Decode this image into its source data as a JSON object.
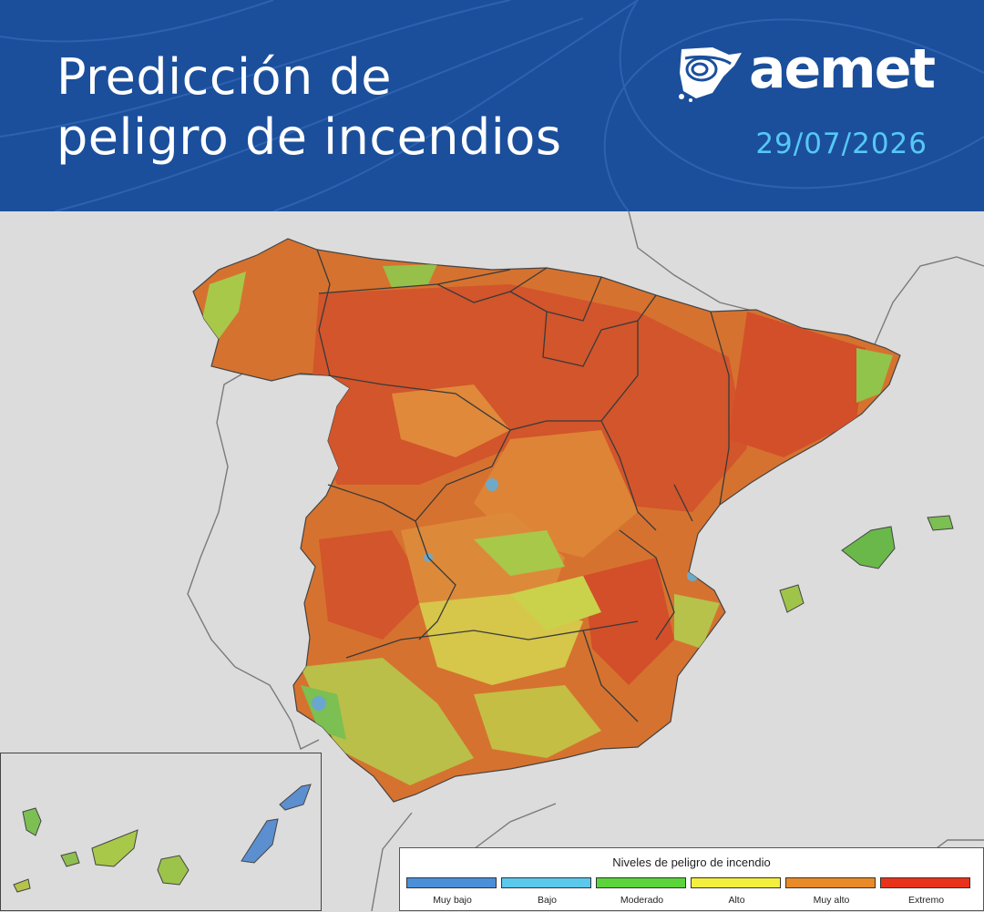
{
  "header": {
    "title_lines": [
      "Predicción de",
      "peligro de incendios"
    ],
    "brand": "aemet",
    "date": "29/07/2026",
    "background_color": "#1b4f9c",
    "date_color": "#56c8f5"
  },
  "legend": {
    "title": "Niveles de peligro de incendio",
    "items": [
      {
        "label": "Muy bajo",
        "color": "#4a8fd8"
      },
      {
        "label": "Bajo",
        "color": "#5cc8ec"
      },
      {
        "label": "Moderado",
        "color": "#5bd43c"
      },
      {
        "label": "Alto",
        "color": "#f4ef3e"
      },
      {
        "label": "Muy alto",
        "color": "#e88a28"
      },
      {
        "label": "Extremo",
        "color": "#e8321c"
      }
    ]
  },
  "map": {
    "mainland_region": "Península y Baleares",
    "inset_region": "Canarias"
  }
}
